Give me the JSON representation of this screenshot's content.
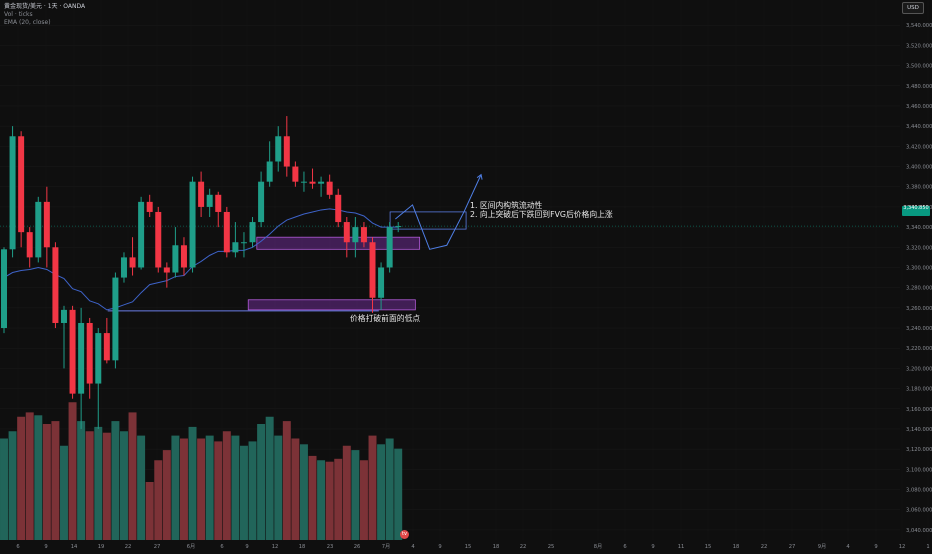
{
  "header": {
    "symbol": "黄金现货/美元 · 1天 · OANDA",
    "volume_label": "Vol · ticks",
    "ema_label": "EMA (20, close)",
    "currency_button": "USD"
  },
  "annotations": {
    "line1": "1. 区间内构筑流动性",
    "line2": "2. 向上突破后下跌回到FVG后价格向上涨",
    "low_break": "价格打破前面的低点"
  },
  "last_price_label": "3,340.850",
  "colors": {
    "up": "#1f9e89",
    "down": "#f23645",
    "volume_up": "#21655a",
    "volume_down": "#7c3237",
    "ema": "#3e63c9",
    "box_fill": "#6b2c8f",
    "box_stroke": "#b05ad6",
    "projection": "#4f7fe6",
    "background": "#0f0f0f"
  },
  "chart_data": {
    "type": "candlestick",
    "ylim": [
      3030,
      3565
    ],
    "y_ticks": [
      "3,040.000",
      "3,060.000",
      "3,080.000",
      "3,100.000",
      "3,120.000",
      "3,140.000",
      "3,160.000",
      "3,180.000",
      "3,200.000",
      "3,220.000",
      "3,240.000",
      "3,260.000",
      "3,280.000",
      "3,300.000",
      "3,320.000",
      "3,340.000",
      "3,360.000",
      "3,380.000",
      "3,400.000",
      "3,420.000",
      "3,440.000",
      "3,460.000",
      "3,480.000",
      "3,500.000",
      "3,520.000",
      "3,540.000"
    ],
    "x_ticks": [
      "6",
      "9",
      "14",
      "19",
      "22",
      "27",
      "6月",
      "6",
      "9",
      "12",
      "18",
      "23",
      "26",
      "7月",
      "4",
      "9",
      "15",
      "18",
      "22",
      "25",
      "8月",
      "6",
      "9",
      "11",
      "15",
      "18",
      "22",
      "27",
      "9月",
      "4",
      "9",
      "12",
      "1"
    ],
    "candles": [
      {
        "o": 3240,
        "h": 3320,
        "l": 3235,
        "c": 3318,
        "v": 70
      },
      {
        "o": 3318,
        "h": 3440,
        "l": 3310,
        "c": 3430,
        "v": 75
      },
      {
        "o": 3430,
        "h": 3435,
        "l": 3320,
        "c": 3335,
        "v": 85
      },
      {
        "o": 3335,
        "h": 3340,
        "l": 3300,
        "c": 3310,
        "v": 88
      },
      {
        "o": 3310,
        "h": 3370,
        "l": 3305,
        "c": 3365,
        "v": 86
      },
      {
        "o": 3365,
        "h": 3380,
        "l": 3300,
        "c": 3320,
        "v": 80
      },
      {
        "o": 3320,
        "h": 3325,
        "l": 3240,
        "c": 3245,
        "v": 82
      },
      {
        "o": 3245,
        "h": 3262,
        "l": 3200,
        "c": 3258,
        "v": 65
      },
      {
        "o": 3258,
        "h": 3262,
        "l": 3170,
        "c": 3175,
        "v": 95
      },
      {
        "o": 3175,
        "h": 3260,
        "l": 3140,
        "c": 3245,
        "v": 82
      },
      {
        "o": 3245,
        "h": 3250,
        "l": 3170,
        "c": 3185,
        "v": 75
      },
      {
        "o": 3185,
        "h": 3240,
        "l": 3140,
        "c": 3235,
        "v": 78
      },
      {
        "o": 3235,
        "h": 3250,
        "l": 3205,
        "c": 3208,
        "v": 74
      },
      {
        "o": 3208,
        "h": 3295,
        "l": 3200,
        "c": 3290,
        "v": 82
      },
      {
        "o": 3290,
        "h": 3315,
        "l": 3285,
        "c": 3310,
        "v": 75
      },
      {
        "o": 3310,
        "h": 3330,
        "l": 3292,
        "c": 3300,
        "v": 88
      },
      {
        "o": 3300,
        "h": 3370,
        "l": 3298,
        "c": 3365,
        "v": 72
      },
      {
        "o": 3365,
        "h": 3372,
        "l": 3350,
        "c": 3355,
        "v": 40
      },
      {
        "o": 3355,
        "h": 3360,
        "l": 3295,
        "c": 3300,
        "v": 55
      },
      {
        "o": 3300,
        "h": 3305,
        "l": 3280,
        "c": 3295,
        "v": 62
      },
      {
        "o": 3295,
        "h": 3340,
        "l": 3290,
        "c": 3322,
        "v": 72
      },
      {
        "o": 3322,
        "h": 3330,
        "l": 3292,
        "c": 3300,
        "v": 70
      },
      {
        "o": 3300,
        "h": 3390,
        "l": 3295,
        "c": 3385,
        "v": 78
      },
      {
        "o": 3385,
        "h": 3395,
        "l": 3350,
        "c": 3360,
        "v": 70
      },
      {
        "o": 3360,
        "h": 3378,
        "l": 3350,
        "c": 3372,
        "v": 72
      },
      {
        "o": 3372,
        "h": 3375,
        "l": 3340,
        "c": 3355,
        "v": 68
      },
      {
        "o": 3355,
        "h": 3360,
        "l": 3310,
        "c": 3315,
        "v": 75
      },
      {
        "o": 3315,
        "h": 3345,
        "l": 3310,
        "c": 3325,
        "v": 72
      },
      {
        "o": 3325,
        "h": 3335,
        "l": 3310,
        "c": 3325,
        "v": 65
      },
      {
        "o": 3325,
        "h": 3350,
        "l": 3320,
        "c": 3345,
        "v": 68
      },
      {
        "o": 3345,
        "h": 3395,
        "l": 3340,
        "c": 3385,
        "v": 80
      },
      {
        "o": 3385,
        "h": 3425,
        "l": 3380,
        "c": 3405,
        "v": 85
      },
      {
        "o": 3405,
        "h": 3440,
        "l": 3395,
        "c": 3430,
        "v": 72
      },
      {
        "o": 3430,
        "h": 3450,
        "l": 3390,
        "c": 3400,
        "v": 82
      },
      {
        "o": 3400,
        "h": 3405,
        "l": 3380,
        "c": 3385,
        "v": 70
      },
      {
        "o": 3385,
        "h": 3395,
        "l": 3375,
        "c": 3385,
        "v": 66
      },
      {
        "o": 3385,
        "h": 3398,
        "l": 3378,
        "c": 3383,
        "v": 58
      },
      {
        "o": 3383,
        "h": 3390,
        "l": 3370,
        "c": 3385,
        "v": 55
      },
      {
        "o": 3385,
        "h": 3392,
        "l": 3368,
        "c": 3372,
        "v": 54
      },
      {
        "o": 3372,
        "h": 3378,
        "l": 3340,
        "c": 3345,
        "v": 56
      },
      {
        "o": 3345,
        "h": 3350,
        "l": 3310,
        "c": 3325,
        "v": 65
      },
      {
        "o": 3325,
        "h": 3350,
        "l": 3310,
        "c": 3340,
        "v": 62
      },
      {
        "o": 3340,
        "h": 3345,
        "l": 3320,
        "c": 3325,
        "v": 55
      },
      {
        "o": 3325,
        "h": 3330,
        "l": 3255,
        "c": 3270,
        "v": 72
      },
      {
        "o": 3270,
        "h": 3305,
        "l": 3258,
        "c": 3300,
        "v": 66
      },
      {
        "o": 3300,
        "h": 3345,
        "l": 3295,
        "c": 3340,
        "v": 70
      },
      {
        "o": 3340,
        "h": 3345,
        "l": 3335,
        "c": 3341,
        "v": 63
      }
    ],
    "ema": [
      3290,
      3295,
      3297,
      3298,
      3300,
      3298,
      3293,
      3289,
      3279,
      3276,
      3267,
      3264,
      3258,
      3260,
      3263,
      3266,
      3275,
      3283,
      3285,
      3287,
      3291,
      3292,
      3301,
      3306,
      3312,
      3316,
      3316,
      3317,
      3317,
      3320,
      3326,
      3333,
      3341,
      3347,
      3350,
      3353,
      3355,
      3357,
      3358,
      3357,
      3355,
      3354,
      3351,
      3344,
      3340,
      3340,
      3340
    ],
    "zones": [
      {
        "x0": 29.5,
        "x1": 48.5,
        "y_low": 3318,
        "y_high": 3330
      },
      {
        "x0": 28.5,
        "x1": 48,
        "y_low": 3258,
        "y_high": 3268
      }
    ],
    "breakout_box": {
      "x0": 33.5,
      "x1": 40.5,
      "y_low": 3340,
      "y_high": 3362
    },
    "prior_low": {
      "x0": 10,
      "x1": 33,
      "y": 3258
    },
    "projection": [
      [
        34,
        3348
      ],
      [
        36,
        3362
      ],
      [
        38,
        3318
      ],
      [
        40,
        3322
      ],
      [
        42,
        3355
      ],
      [
        44,
        3392
      ]
    ]
  }
}
